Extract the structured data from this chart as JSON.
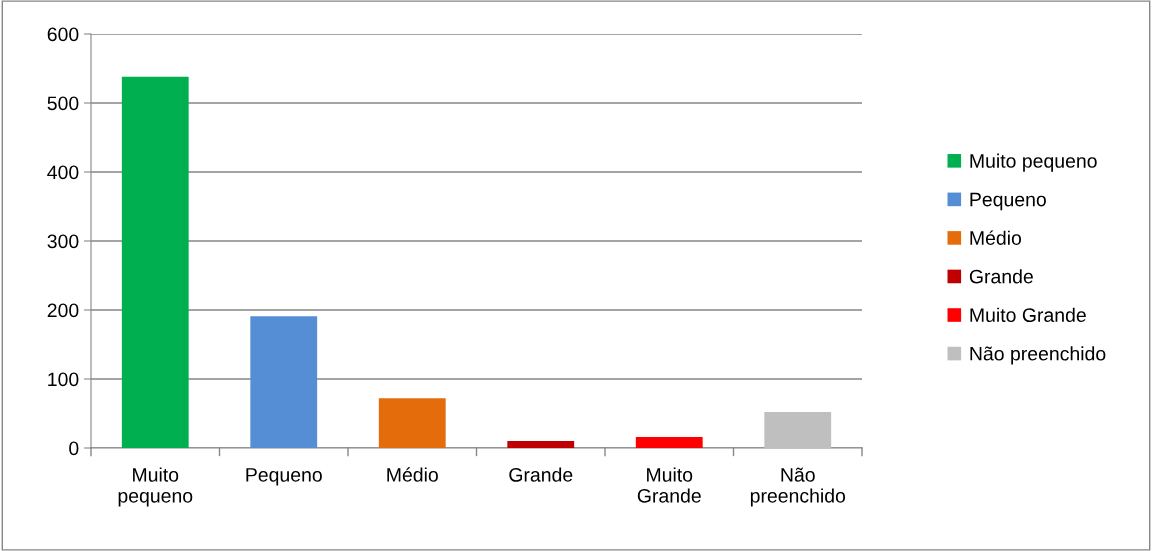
{
  "chart_data": {
    "type": "bar",
    "categories": [
      "Muito\npequeno",
      "Pequeno",
      "Médio",
      "Grande",
      "Muito\nGrande",
      "Não\npreenchido"
    ],
    "series": [
      {
        "name": "Muito pequeno",
        "color": "#00b050",
        "values": [
          538,
          null,
          null,
          null,
          null,
          null
        ]
      },
      {
        "name": "Pequeno",
        "color": "#558ed5",
        "values": [
          null,
          191,
          null,
          null,
          null,
          null
        ]
      },
      {
        "name": "Médio",
        "color": "#e46c0a",
        "values": [
          null,
          null,
          72,
          null,
          null,
          null
        ]
      },
      {
        "name": "Grande",
        "color": "#c00000",
        "values": [
          null,
          null,
          null,
          10,
          null,
          null
        ]
      },
      {
        "name": "Muito Grande",
        "color": "#ff0000",
        "values": [
          null,
          null,
          null,
          null,
          16,
          null
        ]
      },
      {
        "name": "Não preenchido",
        "color": "#bfbfbf",
        "values": [
          null,
          null,
          null,
          null,
          null,
          52
        ]
      }
    ],
    "ylim": [
      0,
      600
    ],
    "yticks": [
      0,
      100,
      200,
      300,
      400,
      500,
      600
    ],
    "grid": "y",
    "legend": "right"
  }
}
